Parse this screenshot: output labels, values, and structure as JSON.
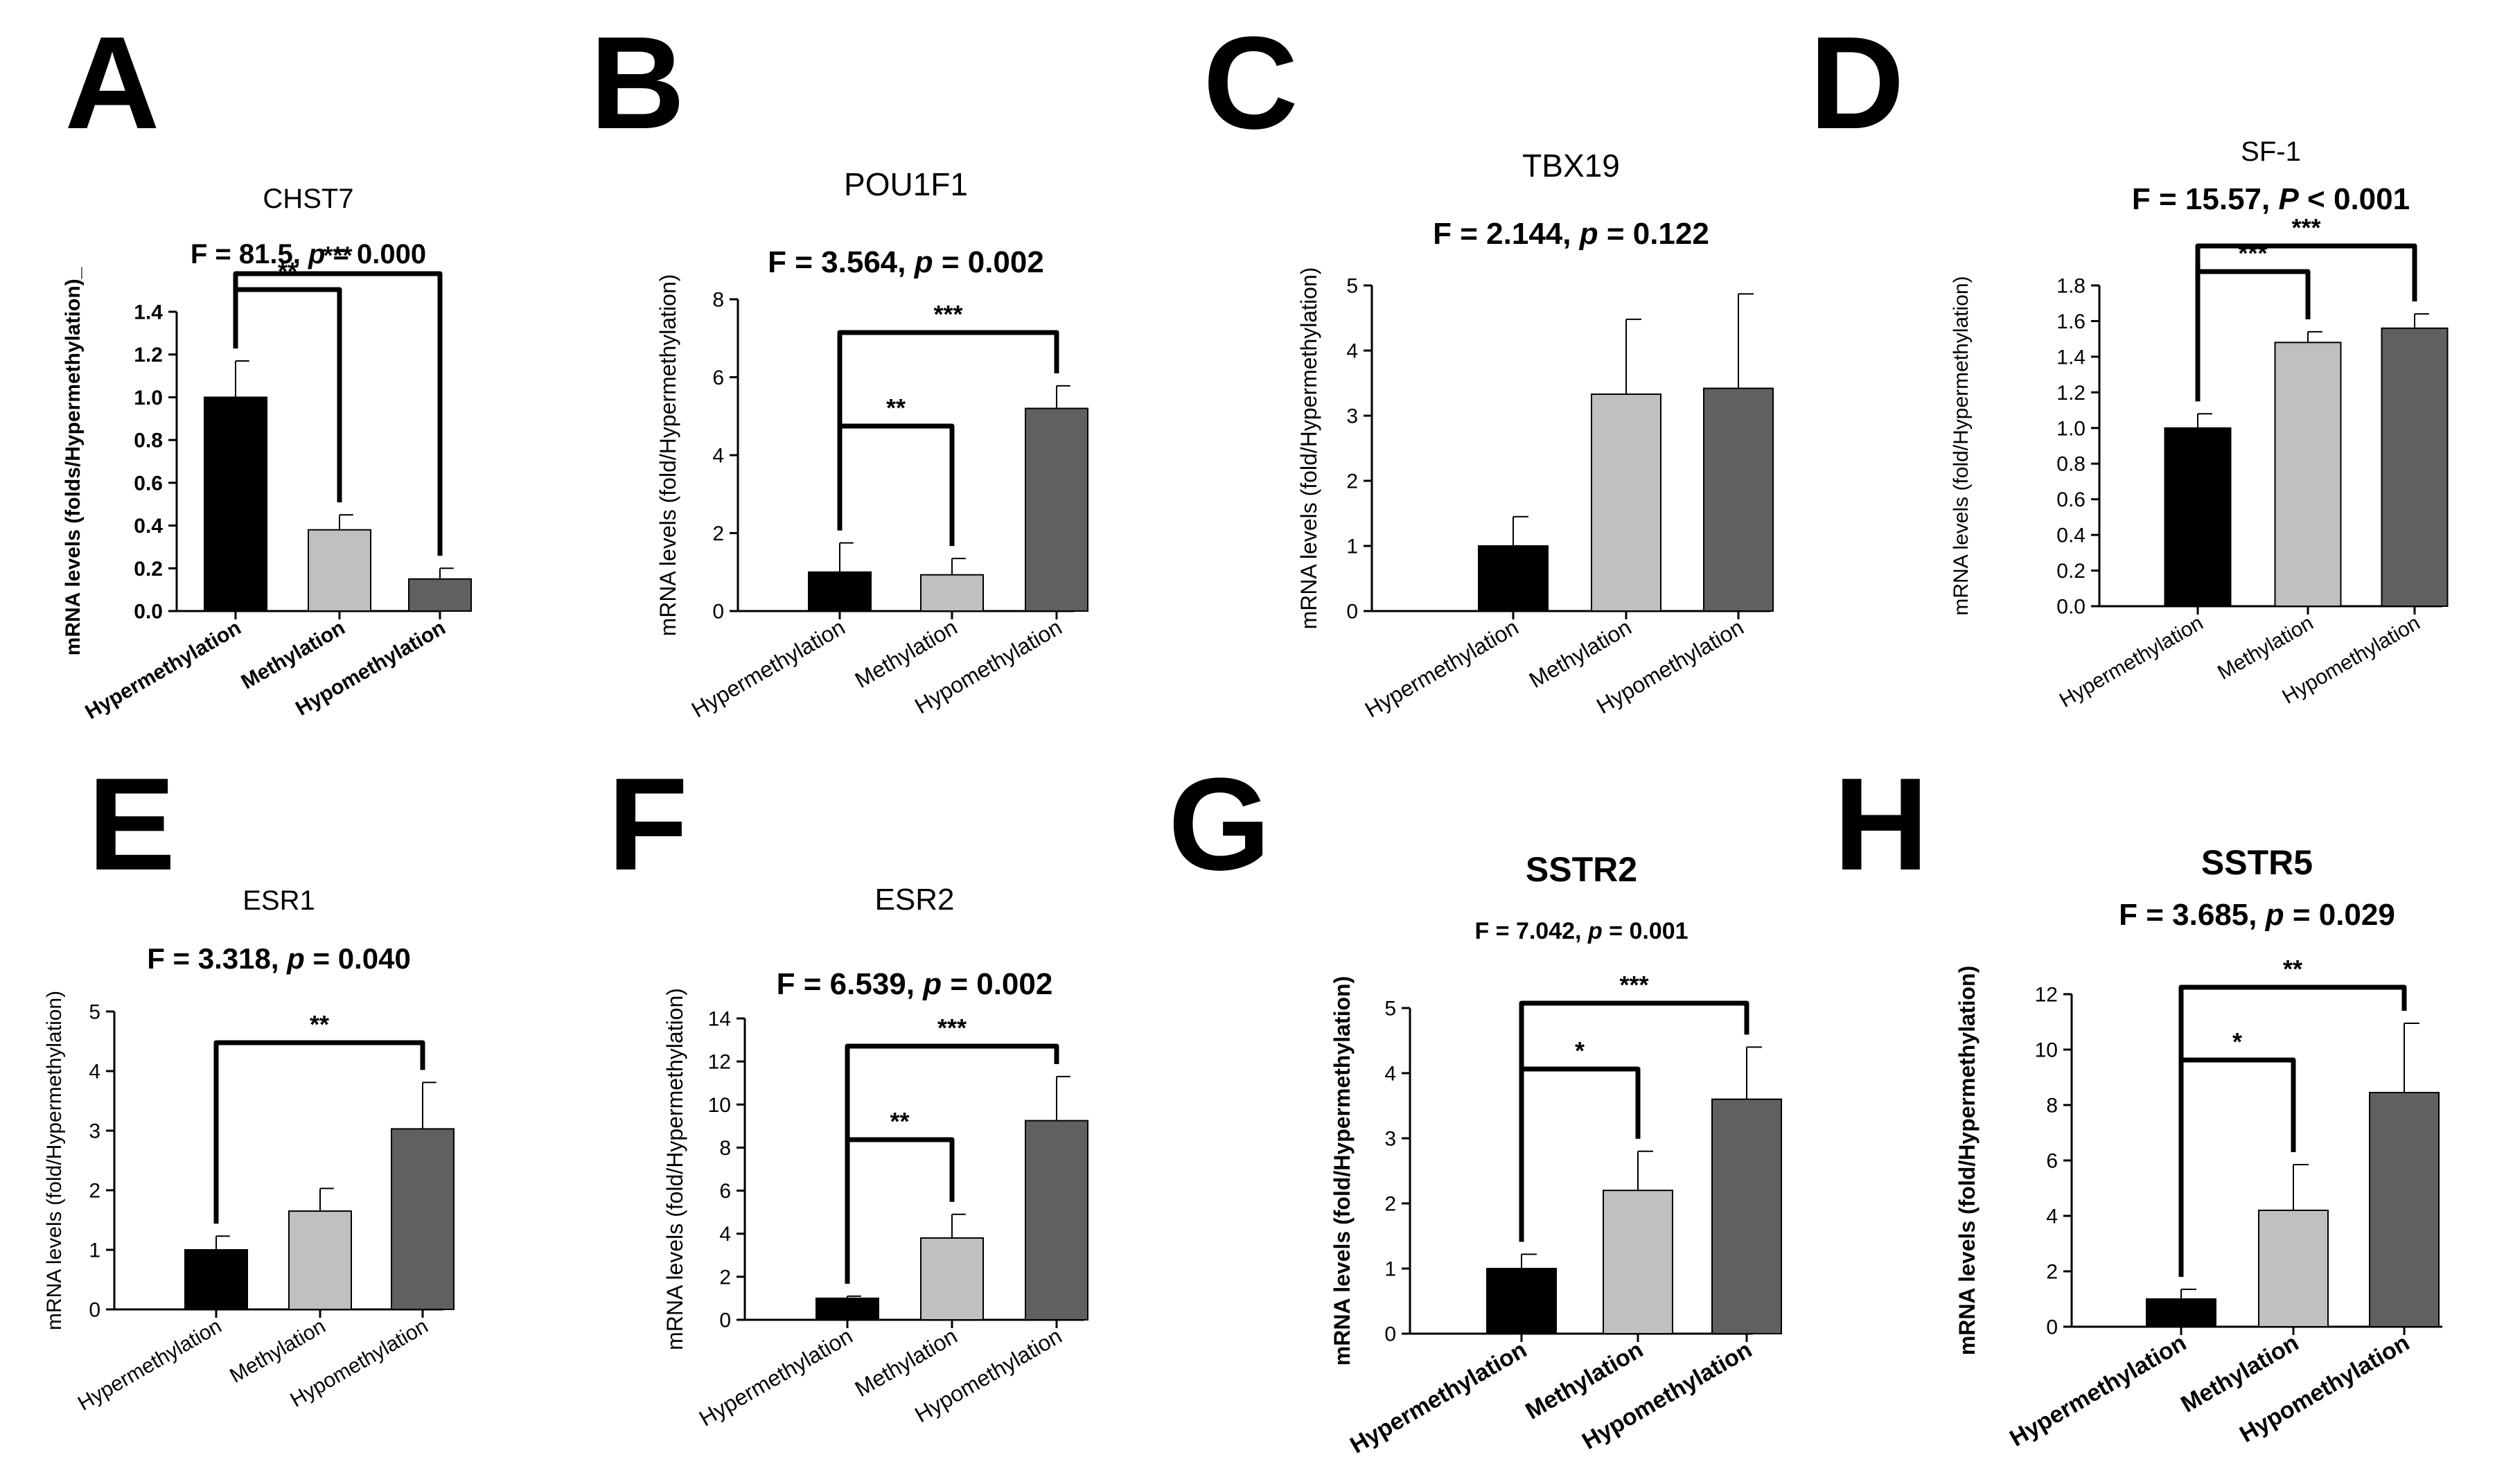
{
  "colors": {
    "Hypermethylation": "#000000",
    "Methylation": "#c0c0c0",
    "Hypomethylation": "#606060"
  },
  "chart_data": [
    {
      "panel": "A",
      "type": "bar",
      "title": "CHST7",
      "stat_parts": [
        {
          "t": "F = 81.5, "
        },
        {
          "t": "p",
          "i": true
        },
        {
          "t": " = 0.000"
        }
      ],
      "xlabel": "",
      "ylabel": "mRNA levels  (folds/Hypermethylation)_",
      "categories": [
        "Hypermethylation",
        "Methylation",
        "Hypomethylation"
      ],
      "values": [
        1.0,
        0.38,
        0.15
      ],
      "errors": [
        0.17,
        0.07,
        0.05
      ],
      "ylim": [
        0,
        1.4
      ],
      "yticks": [
        "0.0",
        "0.2",
        "0.4",
        "0.6",
        "0.8",
        "1.0",
        "1.2",
        "1.4"
      ],
      "significance": [
        {
          "from": 0,
          "to": 1,
          "label": "**",
          "level": 1
        },
        {
          "from": 0,
          "to": 2,
          "label": "***",
          "level": 2
        }
      ],
      "grid": false
    },
    {
      "panel": "B",
      "type": "bar",
      "title": "POU1F1",
      "stat_parts": [
        {
          "t": "F = 3.564, "
        },
        {
          "t": "p",
          "i": true
        },
        {
          "t": " = 0.002"
        }
      ],
      "xlabel": "",
      "ylabel": "mRNA levels (fold/Hypermethylation)",
      "categories": [
        "Hypermethylation",
        "Methylation",
        "Hypomethylation"
      ],
      "values": [
        1.0,
        0.93,
        5.2
      ],
      "errors": [
        0.75,
        0.42,
        0.58
      ],
      "ylim": [
        0,
        8
      ],
      "yticks": [
        "0",
        "2",
        "4",
        "6",
        "8"
      ],
      "significance": [
        {
          "from": 0,
          "to": 1,
          "label": "**",
          "level": 1
        },
        {
          "from": 0,
          "to": 2,
          "label": "***",
          "level": 2
        }
      ],
      "grid": false
    },
    {
      "panel": "C",
      "type": "bar",
      "title": "TBX19",
      "stat_parts": [
        {
          "t": "F = 2.144, "
        },
        {
          "t": "p",
          "i": true
        },
        {
          "t": " = 0.122"
        }
      ],
      "xlabel": "",
      "ylabel": "mRNA levels (fold/Hypermethylation)",
      "categories": [
        "Hypermethylation",
        "Methylation",
        "Hypomethylation"
      ],
      "values": [
        1.0,
        3.33,
        3.42
      ],
      "errors": [
        0.45,
        1.15,
        1.45
      ],
      "ylim": [
        0,
        5
      ],
      "yticks": [
        "0",
        "1",
        "2",
        "3",
        "4",
        "5"
      ],
      "significance": [],
      "grid": false
    },
    {
      "panel": "D",
      "type": "bar",
      "title": "SF-1",
      "stat_parts": [
        {
          "t": "F = 15.57, "
        },
        {
          "t": "P",
          "i": true
        },
        {
          "t": " < 0.001"
        }
      ],
      "xlabel": "",
      "ylabel": "mRNA levels (fold/Hypermethylation)",
      "categories": [
        "Hypermethylation",
        "Methylation",
        "Hypomethylation"
      ],
      "values": [
        1.0,
        1.48,
        1.56
      ],
      "errors": [
        0.08,
        0.06,
        0.08
      ],
      "ylim": [
        0,
        1.8
      ],
      "yticks": [
        "0.0",
        "0.2",
        "0.4",
        "0.6",
        "0.8",
        "1.0",
        "1.2",
        "1.4",
        "1.6",
        "1.8"
      ],
      "significance": [
        {
          "from": 0,
          "to": 1,
          "label": "***",
          "level": 1
        },
        {
          "from": 0,
          "to": 2,
          "label": "***",
          "level": 2
        }
      ],
      "grid": false
    },
    {
      "panel": "E",
      "type": "bar",
      "title": "ESR1",
      "stat_parts": [
        {
          "t": "F = 3.318, "
        },
        {
          "t": "p",
          "i": true
        },
        {
          "t": " = 0.040"
        }
      ],
      "xlabel": "",
      "ylabel": "mRNA levels (fold/Hypermethylation)",
      "categories": [
        "Hypermethylation",
        "Methylation",
        "Hypomethylation"
      ],
      "values": [
        1.0,
        1.65,
        3.03
      ],
      "errors": [
        0.23,
        0.38,
        0.78
      ],
      "ylim": [
        0,
        5
      ],
      "yticks": [
        "0",
        "1",
        "2",
        "3",
        "4",
        "5"
      ],
      "significance": [
        {
          "from": 0,
          "to": 2,
          "label": "**",
          "level": 1
        }
      ],
      "grid": false
    },
    {
      "panel": "F",
      "type": "bar",
      "title": "ESR2",
      "stat_parts": [
        {
          "t": "F = 6.539, "
        },
        {
          "t": "p",
          "i": true
        },
        {
          "t": " = 0.002"
        }
      ],
      "xlabel": "",
      "ylabel": "mRNA levels (fold/Hypermethylation)",
      "categories": [
        "Hypermethylation",
        "Methylation",
        "Hypomethylation"
      ],
      "values": [
        1.0,
        3.8,
        9.25
      ],
      "errors": [
        0.1,
        1.1,
        2.05
      ],
      "ylim": [
        0,
        14
      ],
      "yticks": [
        "0",
        "2",
        "4",
        "6",
        "8",
        "10",
        "12",
        "14"
      ],
      "significance": [
        {
          "from": 0,
          "to": 1,
          "label": "**",
          "level": 1
        },
        {
          "from": 0,
          "to": 2,
          "label": "***",
          "level": 2
        }
      ],
      "grid": false
    },
    {
      "panel": "G",
      "type": "bar",
      "title": "SSTR2",
      "stat_parts": [
        {
          "t": "F = 7.042, "
        },
        {
          "t": "p",
          "i": true
        },
        {
          "t": " = 0.001"
        }
      ],
      "xlabel": "",
      "ylabel": "mRNA levels (fold/Hypermethylation)",
      "categories": [
        "Hypermethylation",
        "Methylation",
        "Hypomethylation"
      ],
      "values": [
        1.0,
        2.2,
        3.6
      ],
      "errors": [
        0.22,
        0.6,
        0.8
      ],
      "ylim": [
        0,
        5
      ],
      "yticks": [
        "0",
        "1",
        "2",
        "3",
        "4",
        "5"
      ],
      "significance": [
        {
          "from": 0,
          "to": 1,
          "label": "*",
          "level": 1
        },
        {
          "from": 0,
          "to": 2,
          "label": "***",
          "level": 2
        }
      ],
      "grid": false
    },
    {
      "panel": "H",
      "type": "bar",
      "title": "SSTR5",
      "stat_parts": [
        {
          "t": "F = 3.685, "
        },
        {
          "t": "p",
          "i": true
        },
        {
          "t": " = 0.029"
        }
      ],
      "xlabel": "",
      "ylabel": "mRNA levels (fold/Hypermethylation)",
      "categories": [
        "Hypermethylation",
        "Methylation",
        "Hypomethylation"
      ],
      "values": [
        1.0,
        4.2,
        8.45
      ],
      "errors": [
        0.35,
        1.65,
        2.5
      ],
      "ylim": [
        0,
        12
      ],
      "yticks": [
        "0",
        "2",
        "4",
        "6",
        "8",
        "10",
        "12"
      ],
      "significance": [
        {
          "from": 0,
          "to": 1,
          "label": "*",
          "level": 1
        },
        {
          "from": 0,
          "to": 2,
          "label": "**",
          "level": 2
        }
      ],
      "grid": false
    }
  ]
}
